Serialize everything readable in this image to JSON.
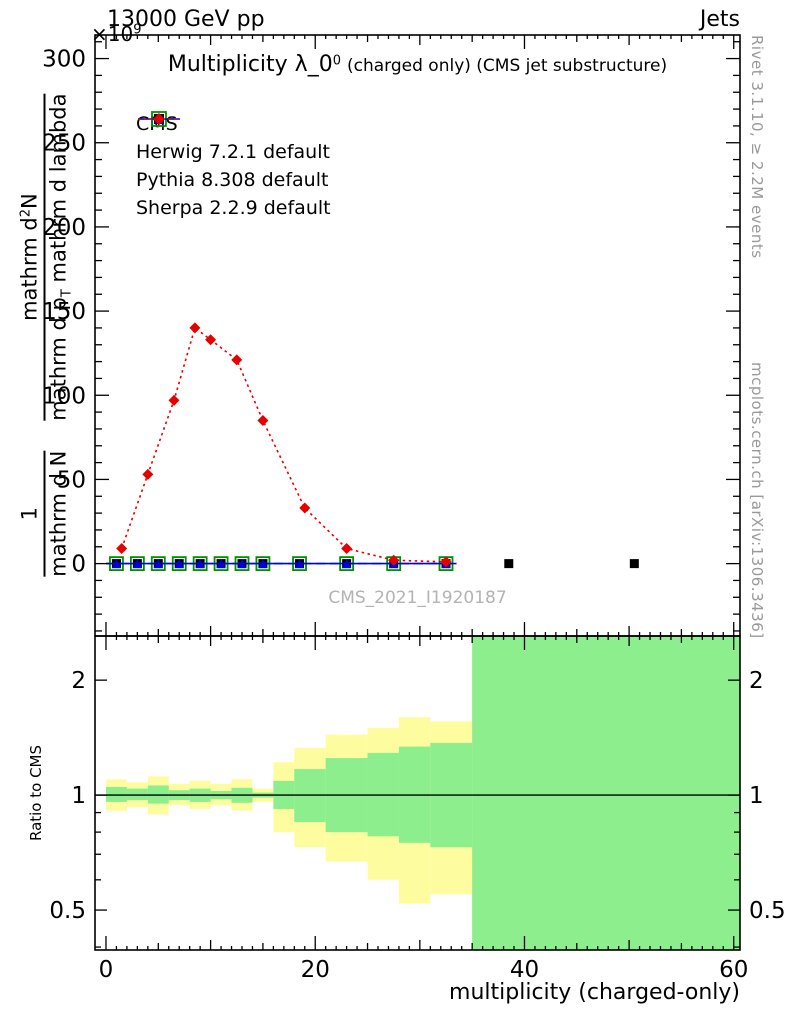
{
  "header": {
    "beam": "13000 GeV pp",
    "right": "Jets"
  },
  "title": {
    "main": "Multiplicity λ_0",
    "sup": "0",
    "suffix": "(charged only) (CMS jet substructure)"
  },
  "y_axis": {
    "scale_base": "×10",
    "scale_exp": "9",
    "frac1_num": "1",
    "frac1_den": "mathrm d N",
    "frac2_num_pre": "mathrm d",
    "frac2_num_sup": "2",
    "frac2_num_post": "N",
    "frac2_den_pre": "mathrm d p",
    "frac2_den_sub": "T",
    "frac2_den_post": "mathrm d lambda"
  },
  "side_notes": {
    "top_right": "Rivet 3.1.10, ≥ 2.2M events",
    "bottom_right": "mcplots.cern.ch [arXiv:1306.3436]"
  },
  "watermark": "CMS_2021_I1920187",
  "colors": {
    "frame": "#000000",
    "watermark": "#b3b3b3",
    "side_note": "#999999"
  },
  "chart_data": {
    "type": "line",
    "title": "Multiplicity λ_0^0 (charged only) (CMS jet substructure)",
    "xlabel": "multiplicity (charged-only)",
    "ylabel_garbled": "1 / mathrm d N · mathrm d²N / mathrm d p_T mathrm d lambda",
    "y_scale_label": "×10^9",
    "xlim": [
      -1.05,
      60.6
    ],
    "ylim": [
      -43,
      314
    ],
    "x_ticks": [
      0,
      20,
      40,
      60
    ],
    "y_ticks": [
      0,
      50,
      100,
      150,
      200,
      250,
      300
    ],
    "y_minor_step": 10,
    "legend_position": "top-left",
    "series": [
      {
        "name": "CMS",
        "color": "#000000",
        "marker": "square-filled",
        "msize": 4.5,
        "line": "none",
        "x": [
          1,
          3,
          5,
          7,
          9,
          11,
          13,
          15,
          18.5,
          23,
          27.5,
          32.5,
          38.5,
          50.5
        ],
        "y": [
          0,
          0,
          0,
          0,
          0,
          0,
          0,
          0,
          0,
          0,
          0,
          0,
          0,
          0
        ]
      },
      {
        "name": "Herwig 7.2.1 default",
        "color": "#009100",
        "marker": "square-open",
        "msize": 6.5,
        "line": "dashed",
        "xline": [
          0,
          33.5
        ],
        "x": [
          1,
          3,
          5,
          7,
          9,
          11,
          13,
          15,
          18.5,
          23,
          27.5,
          32.5
        ],
        "y": [
          0,
          0,
          0,
          0,
          0,
          0,
          0,
          0,
          0,
          0,
          0,
          0
        ]
      },
      {
        "name": "Pythia 8.308 default",
        "color": "#0000e0",
        "marker": "triangle-filled",
        "msize": 4.5,
        "line": "solid",
        "xline": [
          0,
          33.5
        ],
        "x": [
          1,
          3,
          5,
          7,
          9,
          11,
          13,
          15,
          18.5,
          23,
          27.5,
          32.5
        ],
        "y": [
          0,
          0,
          0,
          0,
          0,
          0,
          0,
          0,
          0,
          0,
          0,
          0
        ]
      },
      {
        "name": "Sherpa 2.2.9 default",
        "color": "#e60000",
        "marker": "diamond-filled",
        "msize": 5.5,
        "line": "dotted",
        "x": [
          1.5,
          4,
          6.5,
          8.5,
          10,
          12.5,
          15,
          19,
          23,
          27.5,
          32.5
        ],
        "y": [
          9,
          53,
          97,
          140,
          133,
          121,
          85,
          33,
          9,
          2,
          1
        ]
      }
    ],
    "ratio": {
      "ylabel": "Ratio to CMS",
      "ylim": [
        0.393,
        2.61
      ],
      "ticks": [
        0.5,
        1,
        2
      ],
      "tick_labels": [
        "0.5",
        "1",
        "2"
      ],
      "minor_ticks": [
        0.4,
        0.6,
        0.7,
        0.8,
        0.9
      ],
      "unity": 1,
      "band_colors": {
        "outer": "#fdfda0",
        "inner": "#8cee8c"
      },
      "bands": [
        {
          "x0": 0,
          "x1": 2,
          "ylo": 0.91,
          "yhi": 1.1,
          "glo": 0.96,
          "ghi": 1.05
        },
        {
          "x0": 2,
          "x1": 4,
          "ylo": 0.93,
          "yhi": 1.08,
          "glo": 0.97,
          "ghi": 1.04
        },
        {
          "x0": 4,
          "x1": 6,
          "ylo": 0.89,
          "yhi": 1.12,
          "glo": 0.95,
          "ghi": 1.06
        },
        {
          "x0": 6,
          "x1": 8,
          "ylo": 0.94,
          "yhi": 1.07,
          "glo": 0.97,
          "ghi": 1.03
        },
        {
          "x0": 8,
          "x1": 10,
          "ylo": 0.92,
          "yhi": 1.09,
          "glo": 0.96,
          "ghi": 1.04
        },
        {
          "x0": 10,
          "x1": 12,
          "ylo": 0.94,
          "yhi": 1.07,
          "glo": 0.975,
          "ghi": 1.025
        },
        {
          "x0": 12,
          "x1": 14,
          "ylo": 0.91,
          "yhi": 1.1,
          "glo": 0.955,
          "ghi": 1.045
        },
        {
          "x0": 14,
          "x1": 16,
          "ylo": 0.96,
          "yhi": 1.04,
          "glo": 0.985,
          "ghi": 1.015
        },
        {
          "x0": 16,
          "x1": 18,
          "ylo": 0.8,
          "yhi": 1.22,
          "glo": 0.92,
          "ghi": 1.09
        },
        {
          "x0": 18,
          "x1": 21,
          "ylo": 0.73,
          "yhi": 1.33,
          "glo": 0.85,
          "ghi": 1.17
        },
        {
          "x0": 21,
          "x1": 25,
          "ylo": 0.67,
          "yhi": 1.44,
          "glo": 0.8,
          "ghi": 1.25
        },
        {
          "x0": 25,
          "x1": 28,
          "ylo": 0.6,
          "yhi": 1.5,
          "glo": 0.78,
          "ghi": 1.29
        },
        {
          "x0": 28,
          "x1": 31,
          "ylo": 0.52,
          "yhi": 1.6,
          "glo": 0.75,
          "ghi": 1.34
        },
        {
          "x0": 31,
          "x1": 35,
          "ylo": 0.55,
          "yhi": 1.56,
          "glo": 0.73,
          "ghi": 1.37
        },
        {
          "x0": 35,
          "x1": 60.6,
          "ylo": 0.39,
          "yhi": 2.62,
          "glo": 0.39,
          "ghi": 2.62
        }
      ]
    }
  }
}
